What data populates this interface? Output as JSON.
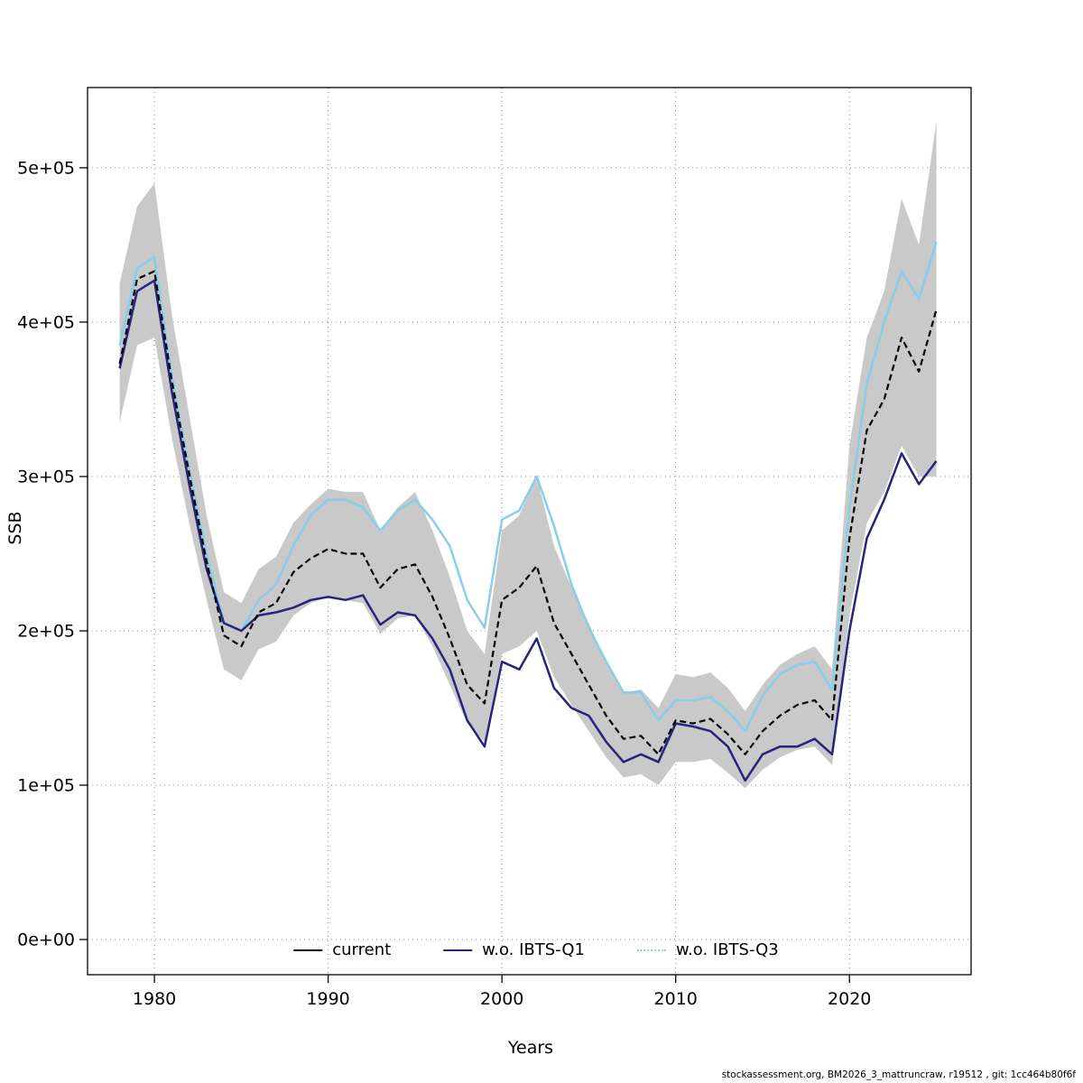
{
  "page": {
    "footer": "stockassessment.org, BM2026_3_mattruncraw, r19512 , git: 1cc464b80f6f"
  },
  "chart_data": {
    "type": "line",
    "title": "",
    "xlabel": "Years",
    "ylabel": "SSB",
    "xlim": [
      1976.15,
      2027.0
    ],
    "ylim": [
      -22800,
      552000
    ],
    "x_ticks": [
      1980,
      1990,
      2000,
      2010,
      2020
    ],
    "y_ticks": [
      0,
      100000,
      200000,
      300000,
      400000,
      500000
    ],
    "y_tick_labels": [
      "0e+00",
      "1e+05",
      "2e+05",
      "3e+05",
      "4e+05",
      "5e+05"
    ],
    "grid": true,
    "grid_color": "#8c8c8c",
    "legend_position": "bottom-inside",
    "years": [
      1978,
      1979,
      1980,
      1981,
      1982,
      1983,
      1984,
      1985,
      1986,
      1987,
      1988,
      1989,
      1990,
      1991,
      1992,
      1993,
      1994,
      1995,
      1996,
      1997,
      1998,
      1999,
      2000,
      2001,
      2002,
      2003,
      2004,
      2005,
      2006,
      2007,
      2008,
      2009,
      2010,
      2011,
      2012,
      2013,
      2014,
      2015,
      2016,
      2017,
      2018,
      2019,
      2020,
      2021,
      2022,
      2023,
      2024,
      2025
    ],
    "series": [
      {
        "name": "current",
        "color": "#000000",
        "line_style": "dashed",
        "legend_style": "solid",
        "values": [
          373000,
          428000,
          433000,
          362000,
          302000,
          245000,
          197000,
          190000,
          212000,
          218000,
          238000,
          247000,
          253000,
          250000,
          250000,
          228000,
          240000,
          243000,
          222000,
          195000,
          165000,
          153000,
          220000,
          228000,
          242000,
          205000,
          185000,
          165000,
          145000,
          130000,
          132000,
          120000,
          142000,
          140000,
          143000,
          133000,
          120000,
          135000,
          145000,
          152000,
          155000,
          142000,
          260000,
          330000,
          350000,
          390000,
          368000,
          408000
        ]
      },
      {
        "name": "w.o. IBTS-Q1",
        "color": "#26247d",
        "line_style": "solid",
        "legend_style": "solid",
        "values": [
          370000,
          420000,
          427000,
          355000,
          295000,
          240000,
          205000,
          200000,
          210000,
          212000,
          215000,
          220000,
          222000,
          220000,
          223000,
          204000,
          212000,
          210000,
          195000,
          175000,
          142000,
          125000,
          180000,
          175000,
          195000,
          163000,
          150000,
          145000,
          128000,
          115000,
          120000,
          115000,
          140000,
          138000,
          135000,
          125000,
          103000,
          120000,
          125000,
          125000,
          130000,
          120000,
          200000,
          260000,
          285000,
          315000,
          295000,
          310000
        ]
      },
      {
        "name": "w.o. IBTS-Q3",
        "color": "#87ceeb",
        "line_style": "solid",
        "legend_style": "dotted",
        "values": [
          385000,
          435000,
          442000,
          365000,
          305000,
          250000,
          205000,
          200000,
          220000,
          230000,
          255000,
          275000,
          285000,
          285000,
          280000,
          265000,
          278000,
          285000,
          272000,
          255000,
          220000,
          202000,
          272000,
          278000,
          300000,
          268000,
          230000,
          202000,
          180000,
          160000,
          160000,
          142000,
          155000,
          155000,
          157000,
          148000,
          135000,
          158000,
          172000,
          178000,
          180000,
          162000,
          280000,
          360000,
          400000,
          433000,
          415000,
          452000
        ]
      }
    ],
    "band": {
      "name": "confidence-band",
      "series": "current",
      "color": "#c9c9c9",
      "lower": [
        335000,
        385000,
        390000,
        325000,
        270000,
        220000,
        175000,
        168000,
        188000,
        193000,
        210000,
        218000,
        222000,
        220000,
        218000,
        198000,
        208000,
        210000,
        190000,
        165000,
        140000,
        128000,
        185000,
        190000,
        200000,
        170000,
        152000,
        135000,
        118000,
        105000,
        107000,
        100000,
        115000,
        115000,
        117000,
        108000,
        98000,
        110000,
        118000,
        123000,
        125000,
        113000,
        210000,
        270000,
        290000,
        320000,
        300000,
        300000
      ],
      "upper": [
        425000,
        475000,
        490000,
        405000,
        340000,
        275000,
        225000,
        218000,
        240000,
        248000,
        270000,
        282000,
        292000,
        290000,
        290000,
        265000,
        280000,
        290000,
        265000,
        235000,
        200000,
        185000,
        265000,
        275000,
        300000,
        255000,
        228000,
        205000,
        180000,
        160000,
        162000,
        150000,
        172000,
        170000,
        173000,
        163000,
        148000,
        165000,
        178000,
        185000,
        190000,
        175000,
        320000,
        390000,
        420000,
        480000,
        450000,
        530000
      ]
    }
  }
}
